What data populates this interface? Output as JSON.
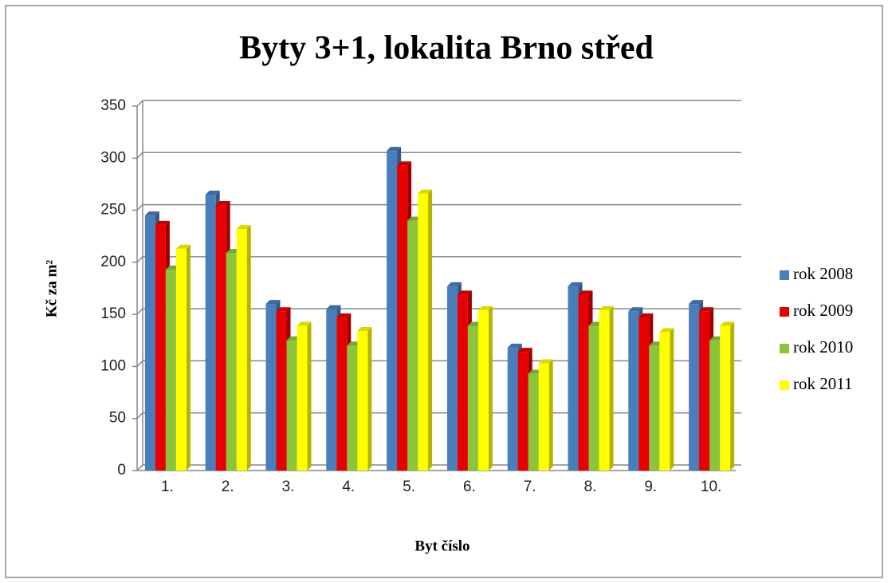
{
  "chart_data": {
    "type": "bar",
    "title": "Byty 3+1, lokalita Brno střed",
    "xlabel": "Byt číslo",
    "ylabel": "Kč za m²",
    "categories": [
      "1.",
      "2.",
      "3.",
      "4.",
      "5.",
      "6.",
      "7.",
      "8.",
      "9.",
      "10."
    ],
    "series": [
      {
        "name": "rok 2008",
        "color": "#4a7ebb",
        "values": [
          245,
          265,
          160,
          155,
          307,
          177,
          118,
          177,
          153,
          160
        ]
      },
      {
        "name": "rok 2009",
        "color": "#e60000",
        "values": [
          236,
          255,
          153,
          147,
          293,
          169,
          114,
          169,
          147,
          153
        ]
      },
      {
        "name": "rok 2010",
        "color": "#8cc43c",
        "values": [
          193,
          209,
          125,
          120,
          240,
          139,
          93,
          139,
          120,
          125
        ]
      },
      {
        "name": "rok 2011",
        "color": "#ffff00",
        "values": [
          213,
          232,
          139,
          134,
          266,
          154,
          103,
          154,
          133,
          139
        ]
      }
    ],
    "ylim": [
      0,
      350
    ],
    "yticks": [
      0,
      50,
      100,
      150,
      200,
      250,
      300,
      350
    ],
    "grid": true,
    "legend": "right"
  }
}
